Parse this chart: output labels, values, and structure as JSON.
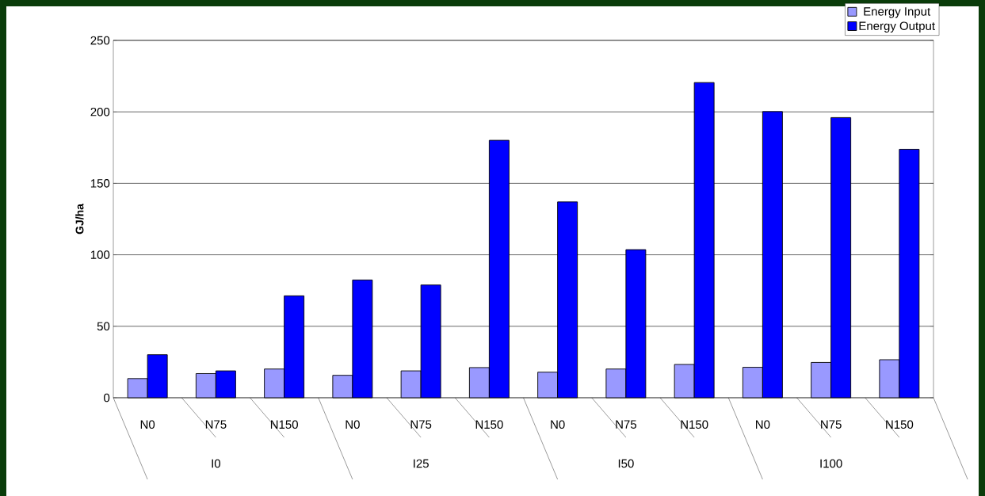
{
  "chart_data": {
    "type": "bar",
    "ylabel": "GJ/ha",
    "categories": [
      "N0",
      "N75",
      "N150",
      "N0",
      "N75",
      "N150",
      "N0",
      "N75",
      "N150",
      "N0",
      "N75",
      "N150"
    ],
    "series": [
      {
        "name": "Energy Input",
        "color": "#9999ff",
        "values": [
          13.4,
          16.9,
          20.1,
          15.7,
          18.8,
          21.1,
          17.9,
          20.1,
          23.3,
          21.3,
          24.7,
          26.6
        ]
      },
      {
        "name": "Energy Output",
        "color": "#0000ff",
        "values": [
          30.1,
          18.8,
          71.3,
          82.4,
          78.9,
          180.1,
          137,
          103.6,
          220.5,
          200.2,
          196,
          173.8
        ]
      }
    ],
    "annotations": [
      "I0",
      "I25",
      "I50",
      "I100"
    ],
    "ylim": [
      0,
      250
    ],
    "yticks": [
      0,
      50,
      100,
      150,
      200,
      250
    ],
    "grid": "y",
    "legend": "top right"
  }
}
